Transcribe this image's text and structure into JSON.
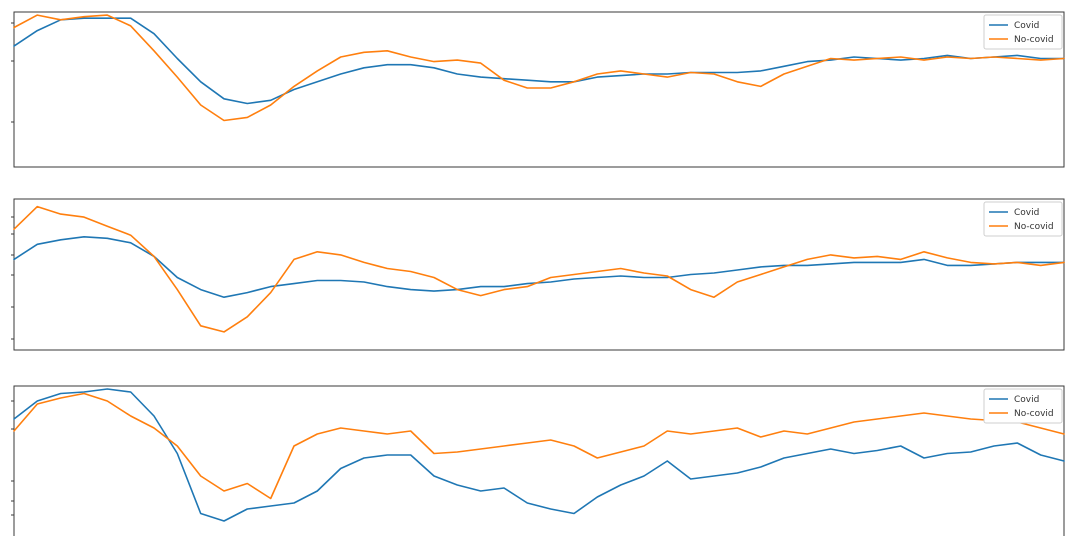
{
  "chart_data": [
    {
      "type": "line",
      "legend_placement": "top-right",
      "grid": false,
      "ylim": [
        0,
        100
      ],
      "series": [
        {
          "name": "Covid",
          "color": "#1f77b4",
          "values": [
            78,
            88,
            95,
            96,
            96,
            96,
            86,
            70,
            55,
            44,
            41,
            43,
            50,
            55,
            60,
            64,
            66,
            66,
            64,
            60,
            58,
            57,
            56,
            55,
            55,
            58,
            59,
            60,
            60,
            61,
            61,
            61,
            62,
            65,
            68,
            69,
            71,
            70,
            69,
            70,
            72,
            70,
            71,
            72,
            70,
            70
          ]
        },
        {
          "name": "No-covid",
          "color": "#ff7f0e",
          "values": [
            90,
            98,
            95,
            97,
            98,
            91,
            75,
            58,
            40,
            30,
            32,
            40,
            52,
            62,
            71,
            74,
            75,
            71,
            68,
            69,
            67,
            56,
            51,
            51,
            55,
            60,
            62,
            60,
            58,
            61,
            60,
            55,
            52,
            60,
            65,
            70,
            69,
            70,
            71,
            69,
            71,
            70,
            71,
            70,
            69,
            70
          ]
        }
      ]
    },
    {
      "type": "line",
      "legend_placement": "top-right",
      "grid": false,
      "ylim": [
        0,
        100
      ],
      "series": [
        {
          "name": "Covid",
          "color": "#1f77b4",
          "values": [
            60,
            70,
            73,
            75,
            74,
            71,
            62,
            48,
            40,
            35,
            38,
            42,
            44,
            46,
            46,
            45,
            42,
            40,
            39,
            40,
            42,
            42,
            44,
            45,
            47,
            48,
            49,
            48,
            48,
            50,
            51,
            53,
            55,
            56,
            56,
            57,
            58,
            58,
            58,
            60,
            56,
            56,
            57,
            58,
            58,
            58
          ]
        },
        {
          "name": "No-covid",
          "color": "#ff7f0e",
          "values": [
            80,
            95,
            90,
            88,
            82,
            76,
            62,
            40,
            16,
            12,
            22,
            38,
            60,
            65,
            63,
            58,
            54,
            52,
            48,
            40,
            36,
            40,
            42,
            48,
            50,
            52,
            54,
            51,
            49,
            40,
            35,
            45,
            50,
            55,
            60,
            63,
            61,
            62,
            60,
            65,
            61,
            58,
            57,
            58,
            56,
            58
          ]
        }
      ]
    },
    {
      "type": "line",
      "legend_placement": "top-right",
      "grid": false,
      "ylim": [
        0,
        100
      ],
      "series": [
        {
          "name": "Covid",
          "color": "#1f77b4",
          "values": [
            78,
            90,
            95,
            96,
            98,
            96,
            80,
            55,
            15,
            10,
            18,
            20,
            22,
            30,
            45,
            52,
            54,
            54,
            40,
            34,
            30,
            32,
            22,
            18,
            15,
            26,
            34,
            40,
            50,
            38,
            40,
            42,
            46,
            52,
            55,
            58,
            55,
            57,
            60,
            52,
            55,
            56,
            60,
            62,
            54,
            50
          ]
        },
        {
          "name": "No-covid",
          "color": "#ff7f0e",
          "values": [
            70,
            88,
            92,
            95,
            90,
            80,
            72,
            60,
            40,
            30,
            35,
            25,
            60,
            68,
            72,
            70,
            68,
            70,
            55,
            56,
            58,
            60,
            62,
            64,
            60,
            52,
            56,
            60,
            70,
            68,
            70,
            72,
            66,
            70,
            68,
            72,
            76,
            78,
            80,
            82,
            80,
            78,
            77,
            76,
            72,
            68
          ]
        }
      ]
    }
  ]
}
